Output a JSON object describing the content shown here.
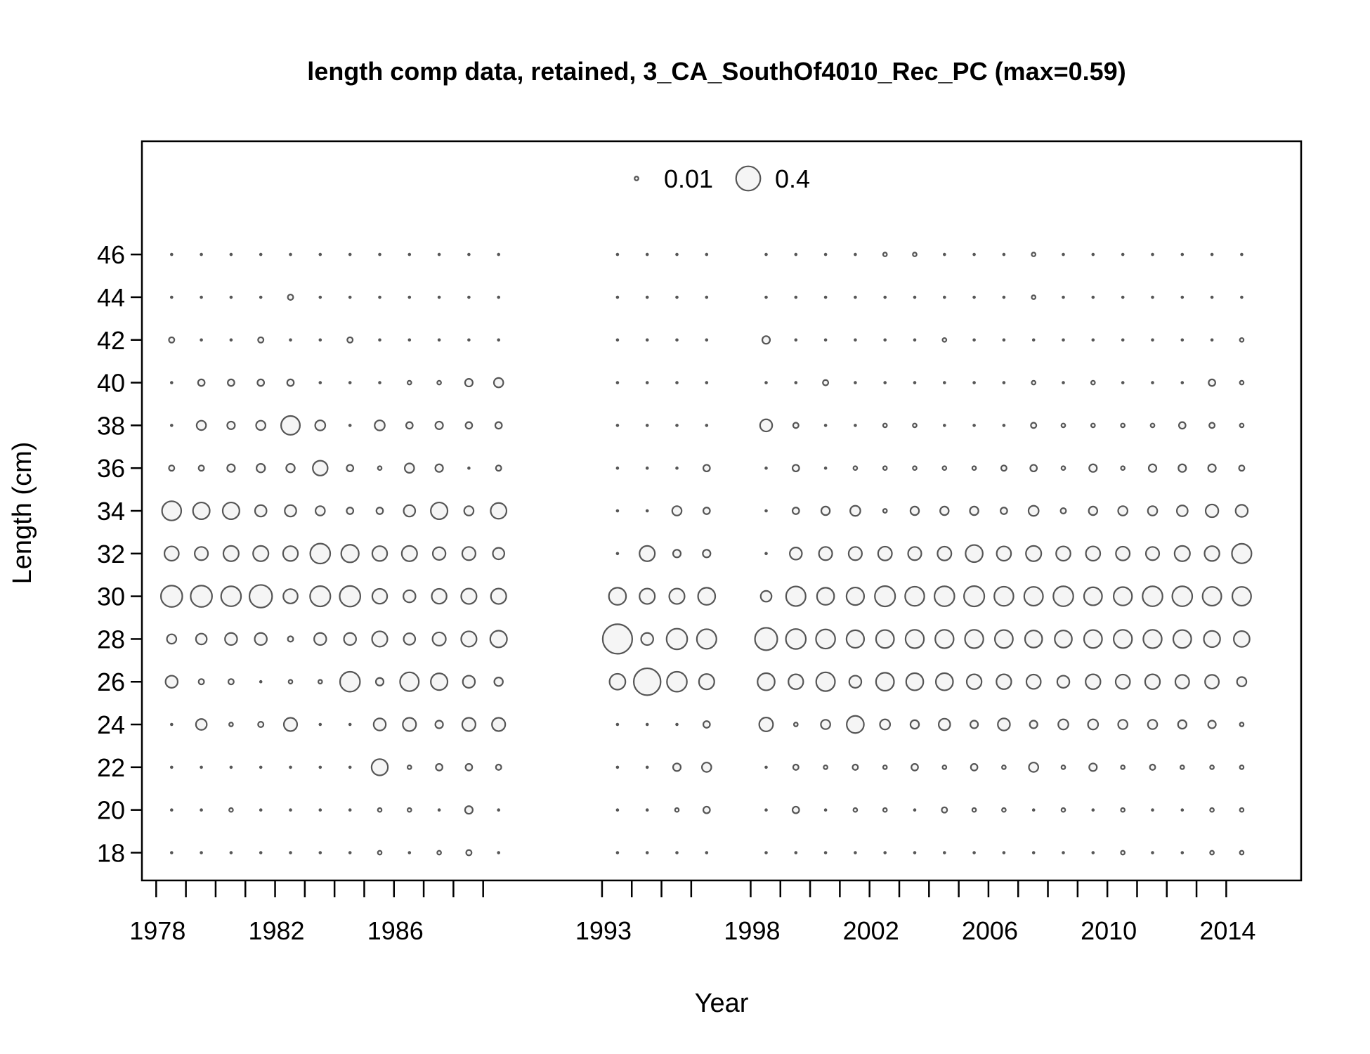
{
  "chart_data": {
    "type": "bubble",
    "title": "length comp data, retained, 3_CA_SouthOf4010_Rec_PC (max=0.59)",
    "xlabel": "Year",
    "ylabel": "Length (cm)",
    "xlim": [
      1977,
      2016
    ],
    "ylim": [
      16.7,
      51.3
    ],
    "x_ticks": [
      1978,
      1982,
      1986,
      1993,
      1998,
      2002,
      2006,
      2010,
      2014
    ],
    "y_ticks": [
      18,
      20,
      22,
      24,
      26,
      28,
      30,
      32,
      34,
      36,
      38,
      40,
      42,
      44,
      46
    ],
    "legend": {
      "placement": "top-center",
      "labels": [
        "0.01",
        "0.4"
      ],
      "values": [
        0.01,
        0.4
      ]
    },
    "max_value": 0.59,
    "colors": {
      "stroke": "#555555",
      "fill": "#f5f5f5"
    },
    "years": [
      1978,
      1979,
      1980,
      1981,
      1982,
      1983,
      1984,
      1985,
      1986,
      1987,
      1988,
      1989,
      1993,
      1994,
      1995,
      1996,
      1998,
      1999,
      2000,
      2001,
      2002,
      2003,
      2004,
      2005,
      2006,
      2007,
      2008,
      2009,
      2010,
      2011,
      2012,
      2013,
      2014
    ],
    "lengths": [
      18,
      20,
      22,
      24,
      26,
      28,
      30,
      32,
      34,
      36,
      38,
      40,
      42,
      44,
      46
    ],
    "values": [
      [
        0.001,
        0.001,
        0.001,
        0.001,
        0.1,
        0.06,
        0.31,
        0.14,
        0.25,
        0.02,
        0.001,
        0.001,
        0.02,
        0.001,
        0.001
      ],
      [
        0.001,
        0.001,
        0.001,
        0.08,
        0.02,
        0.08,
        0.31,
        0.12,
        0.19,
        0.02,
        0.06,
        0.03,
        0.001,
        0.001,
        0.001
      ],
      [
        0.001,
        0.01,
        0.001,
        0.01,
        0.02,
        0.1,
        0.27,
        0.16,
        0.19,
        0.04,
        0.04,
        0.03,
        0.001,
        0.001,
        0.001
      ],
      [
        0.001,
        0.001,
        0.001,
        0.02,
        0.001,
        0.1,
        0.35,
        0.16,
        0.09,
        0.05,
        0.06,
        0.03,
        0.02,
        0.001,
        0.001
      ],
      [
        0.001,
        0.001,
        0.001,
        0.12,
        0.01,
        0.02,
        0.14,
        0.15,
        0.09,
        0.05,
        0.24,
        0.03,
        0.001,
        0.02,
        0.001
      ],
      [
        0.001,
        0.001,
        0.001,
        0.001,
        0.01,
        0.1,
        0.28,
        0.27,
        0.06,
        0.15,
        0.07,
        0.001,
        0.001,
        0.001,
        0.001
      ],
      [
        0.001,
        0.001,
        0.001,
        0.001,
        0.27,
        0.1,
        0.29,
        0.21,
        0.03,
        0.03,
        0.001,
        0.001,
        0.02,
        0.001,
        0.001
      ],
      [
        0.01,
        0.01,
        0.18,
        0.1,
        0.04,
        0.16,
        0.15,
        0.15,
        0.03,
        0.01,
        0.07,
        0.001,
        0.001,
        0.001,
        0.001
      ],
      [
        0.001,
        0.01,
        0.01,
        0.12,
        0.24,
        0.09,
        0.1,
        0.16,
        0.09,
        0.06,
        0.03,
        0.01,
        0.001,
        0.001,
        0.001
      ],
      [
        0.01,
        0.001,
        0.03,
        0.04,
        0.19,
        0.12,
        0.15,
        0.11,
        0.19,
        0.04,
        0.04,
        0.01,
        0.001,
        0.001,
        0.001
      ],
      [
        0.02,
        0.04,
        0.03,
        0.12,
        0.1,
        0.16,
        0.16,
        0.12,
        0.06,
        0.001,
        0.03,
        0.04,
        0.001,
        0.001,
        0.001
      ],
      [
        0.001,
        0.001,
        0.02,
        0.12,
        0.05,
        0.19,
        0.16,
        0.09,
        0.17,
        0.02,
        0.03,
        0.06,
        0.001,
        0.001,
        0.001
      ],
      [
        0.001,
        0.001,
        0.001,
        0.001,
        0.17,
        0.59,
        0.2,
        0.001,
        0.001,
        0.001,
        0.001,
        0.001,
        0.001,
        0.001,
        0.001
      ],
      [
        0.001,
        0.001,
        0.001,
        0.001,
        0.49,
        0.1,
        0.16,
        0.16,
        0.001,
        0.001,
        0.001,
        0.001,
        0.001,
        0.001,
        0.001
      ],
      [
        0.001,
        0.01,
        0.04,
        0.001,
        0.27,
        0.29,
        0.16,
        0.04,
        0.06,
        0.001,
        0.001,
        0.001,
        0.001,
        0.001,
        0.001
      ],
      [
        0.001,
        0.03,
        0.06,
        0.03,
        0.16,
        0.26,
        0.2,
        0.04,
        0.03,
        0.03,
        0.001,
        0.001,
        0.001,
        0.001,
        0.001
      ],
      [
        0.001,
        0.001,
        0.001,
        0.13,
        0.2,
        0.34,
        0.08,
        0.001,
        0.001,
        0.001,
        0.1,
        0.001,
        0.04,
        0.001,
        0.001
      ],
      [
        0.001,
        0.03,
        0.02,
        0.01,
        0.15,
        0.27,
        0.26,
        0.1,
        0.03,
        0.03,
        0.02,
        0.001,
        0.001,
        0.001,
        0.001
      ],
      [
        0.001,
        0.001,
        0.01,
        0.06,
        0.24,
        0.25,
        0.2,
        0.12,
        0.05,
        0.001,
        0.001,
        0.02,
        0.001,
        0.001,
        0.001
      ],
      [
        0.001,
        0.01,
        0.02,
        0.2,
        0.1,
        0.21,
        0.21,
        0.12,
        0.07,
        0.01,
        0.001,
        0.001,
        0.001,
        0.001,
        0.001
      ],
      [
        0.001,
        0.01,
        0.01,
        0.07,
        0.22,
        0.22,
        0.28,
        0.13,
        0.01,
        0.01,
        0.01,
        0.001,
        0.001,
        0.001,
        0.01
      ],
      [
        0.001,
        0.001,
        0.03,
        0.05,
        0.2,
        0.23,
        0.25,
        0.12,
        0.05,
        0.01,
        0.01,
        0.001,
        0.001,
        0.001,
        0.01
      ],
      [
        0.001,
        0.02,
        0.01,
        0.09,
        0.2,
        0.23,
        0.27,
        0.13,
        0.05,
        0.01,
        0.001,
        0.001,
        0.01,
        0.001,
        0.001
      ],
      [
        0.001,
        0.01,
        0.03,
        0.04,
        0.15,
        0.23,
        0.28,
        0.2,
        0.05,
        0.01,
        0.001,
        0.001,
        0.001,
        0.001,
        0.001
      ],
      [
        0.001,
        0.01,
        0.01,
        0.1,
        0.15,
        0.22,
        0.25,
        0.14,
        0.03,
        0.02,
        0.001,
        0.001,
        0.001,
        0.001,
        0.001
      ],
      [
        0.001,
        0.001,
        0.06,
        0.04,
        0.14,
        0.2,
        0.24,
        0.16,
        0.07,
        0.03,
        0.02,
        0.01,
        0.001,
        0.01,
        0.01
      ],
      [
        0.001,
        0.01,
        0.01,
        0.07,
        0.1,
        0.2,
        0.27,
        0.14,
        0.02,
        0.01,
        0.01,
        0.001,
        0.001,
        0.001,
        0.001
      ],
      [
        0.001,
        0.001,
        0.04,
        0.07,
        0.15,
        0.22,
        0.22,
        0.14,
        0.05,
        0.04,
        0.01,
        0.01,
        0.001,
        0.001,
        0.001
      ],
      [
        0.01,
        0.01,
        0.01,
        0.06,
        0.14,
        0.23,
        0.23,
        0.13,
        0.06,
        0.01,
        0.01,
        0.001,
        0.001,
        0.001,
        0.001
      ],
      [
        0.001,
        0.001,
        0.02,
        0.06,
        0.15,
        0.23,
        0.27,
        0.12,
        0.06,
        0.04,
        0.01,
        0.001,
        0.001,
        0.001,
        0.001
      ],
      [
        0.001,
        0.001,
        0.01,
        0.05,
        0.13,
        0.22,
        0.27,
        0.16,
        0.08,
        0.04,
        0.03,
        0.001,
        0.001,
        0.001,
        0.001
      ],
      [
        0.01,
        0.01,
        0.01,
        0.04,
        0.13,
        0.18,
        0.24,
        0.15,
        0.11,
        0.04,
        0.02,
        0.03,
        0.001,
        0.001,
        0.001
      ],
      [
        0.01,
        0.01,
        0.01,
        0.01,
        0.06,
        0.17,
        0.24,
        0.26,
        0.1,
        0.02,
        0.01,
        0.01,
        0.01,
        0.001,
        0.001
      ]
    ]
  }
}
